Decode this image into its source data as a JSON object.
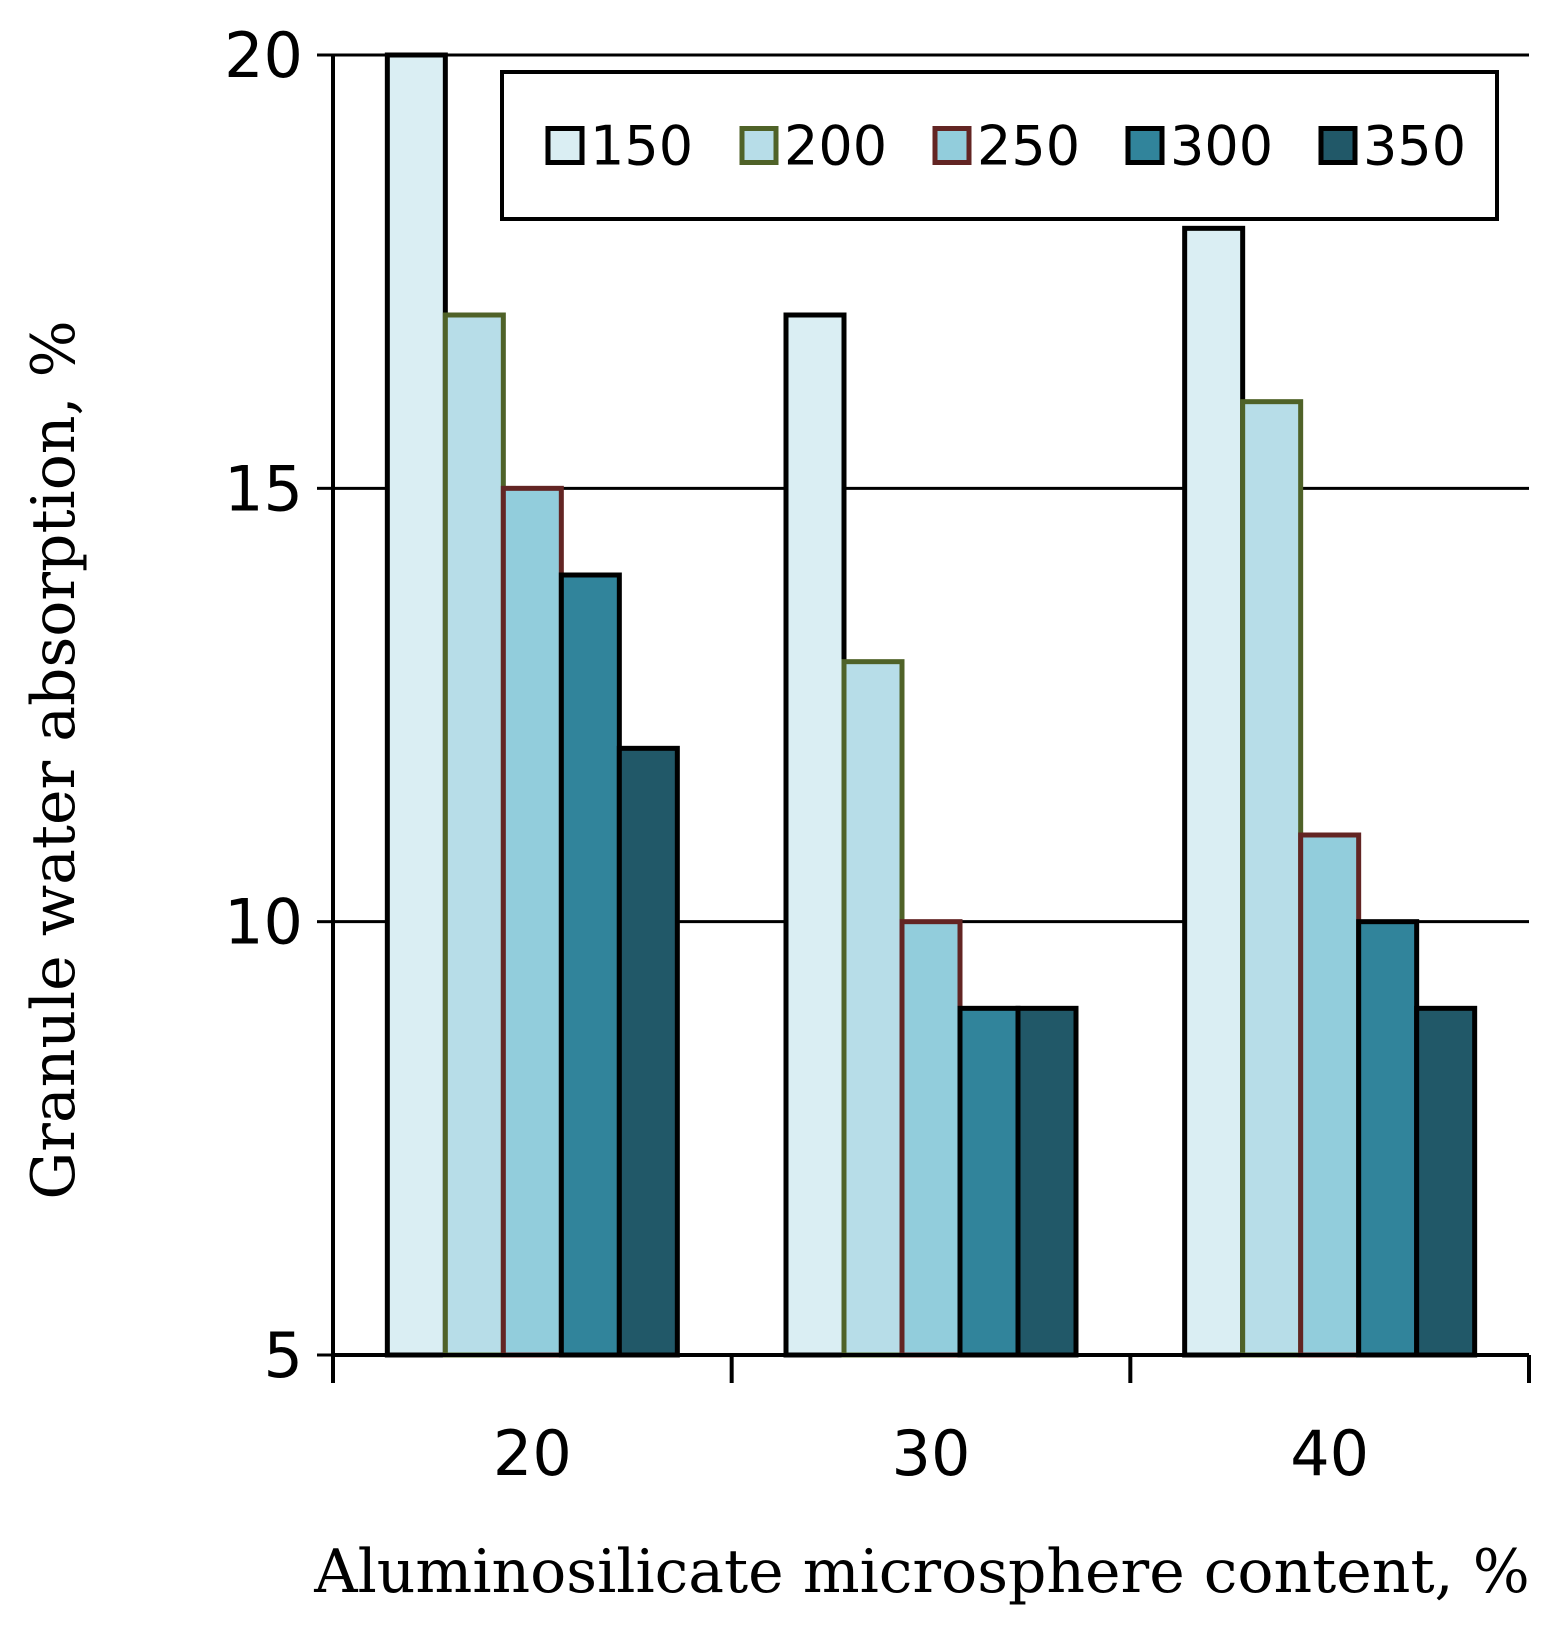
{
  "chart_data": {
    "type": "bar",
    "title": "",
    "xlabel": "Aluminosilicate microsphere content, %",
    "ylabel": "Granule water absorption, %",
    "categories": [
      "20",
      "30",
      "40"
    ],
    "ylim": [
      5,
      20
    ],
    "yticks": [
      "20",
      "15",
      "10",
      "5"
    ],
    "grid": true,
    "legend_position": "top-right",
    "series": [
      {
        "name": "150",
        "values": [
          20,
          17,
          18
        ],
        "fill": "#daeef3",
        "stroke": "#000000"
      },
      {
        "name": "200",
        "values": [
          17,
          13,
          16
        ],
        "fill": "#b7dde8",
        "stroke": "#4f6228"
      },
      {
        "name": "250",
        "values": [
          15,
          10,
          11
        ],
        "fill": "#92cddc",
        "stroke": "#632523"
      },
      {
        "name": "300",
        "values": [
          14,
          9,
          10
        ],
        "fill": "#31849b",
        "stroke": "#000000"
      },
      {
        "name": "350",
        "values": [
          12,
          9,
          9
        ],
        "fill": "#215868",
        "stroke": "#000000"
      }
    ]
  }
}
